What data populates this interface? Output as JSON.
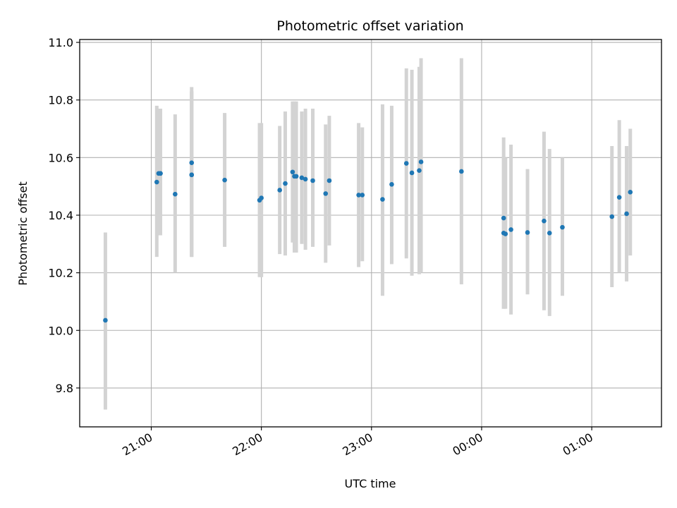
{
  "chart_data": {
    "type": "scatter",
    "title": "Photometric offset variation",
    "xlabel": "UTC time",
    "ylabel": "Photometric offset",
    "x_ticks": [
      "21:00",
      "22:00",
      "23:00",
      "00:00",
      "01:00"
    ],
    "y_ticks": [
      "9.8",
      "10.0",
      "10.2",
      "10.4",
      "10.6",
      "10.8",
      "11.0"
    ],
    "xlim": [
      "20:21",
      "01:38"
    ],
    "ylim": [
      9.665,
      11.01
    ],
    "grid": true,
    "colors": {
      "marker": "#1f77b4",
      "errorbar": "#d3d3d3",
      "grid": "#b0b0b0"
    },
    "series": [
      {
        "x": [
          "20:35",
          "21:03",
          "21:04",
          "21:05",
          "21:05",
          "21:13",
          "21:22",
          "21:22",
          "21:22",
          "21:40",
          "21:59",
          "22:00",
          "22:10",
          "22:13",
          "22:17",
          "22:18",
          "22:19",
          "22:22",
          "22:24",
          "22:28",
          "22:35",
          "22:37",
          "22:53",
          "22:55",
          "23:06",
          "23:11",
          "23:19",
          "23:22",
          "23:26",
          "23:27",
          "23:49",
          "00:12",
          "00:12",
          "00:13",
          "00:16",
          "00:25",
          "00:34",
          "00:37",
          "00:44",
          "01:11",
          "01:15",
          "01:19",
          "01:21"
        ],
        "y": [
          10.035,
          10.515,
          10.545,
          10.545,
          10.545,
          10.473,
          10.582,
          10.54,
          10.54,
          10.522,
          10.452,
          10.46,
          10.487,
          10.51,
          10.55,
          10.535,
          10.535,
          10.53,
          10.525,
          10.52,
          10.475,
          10.52,
          10.47,
          10.47,
          10.455,
          10.507,
          10.58,
          10.547,
          10.555,
          10.585,
          10.552,
          10.39,
          10.338,
          10.335,
          10.35,
          10.34,
          10.38,
          10.338,
          10.358,
          10.395,
          10.462,
          10.405,
          10.48
        ],
        "err_low": [
          9.725,
          10.255,
          10.33,
          10.33,
          10.33,
          10.2,
          10.255,
          10.255,
          10.255,
          10.29,
          10.185,
          10.185,
          10.265,
          10.26,
          10.305,
          10.27,
          10.27,
          10.3,
          10.28,
          10.29,
          10.235,
          10.295,
          10.22,
          10.24,
          10.12,
          10.23,
          10.25,
          10.19,
          10.195,
          10.2,
          10.16,
          10.075,
          10.075,
          10.075,
          10.055,
          10.125,
          10.07,
          10.05,
          10.12,
          10.15,
          10.2,
          10.17,
          10.26
        ],
        "err_high": [
          10.34,
          10.78,
          10.77,
          10.77,
          10.77,
          10.75,
          10.845,
          10.83,
          10.83,
          10.755,
          10.72,
          10.72,
          10.71,
          10.76,
          10.795,
          10.795,
          10.795,
          10.76,
          10.77,
          10.77,
          10.715,
          10.745,
          10.72,
          10.705,
          10.785,
          10.78,
          10.91,
          10.905,
          10.915,
          10.945,
          10.945,
          10.67,
          10.6,
          10.6,
          10.645,
          10.56,
          10.69,
          10.63,
          10.6,
          10.64,
          10.73,
          10.64,
          10.7
        ]
      }
    ]
  }
}
